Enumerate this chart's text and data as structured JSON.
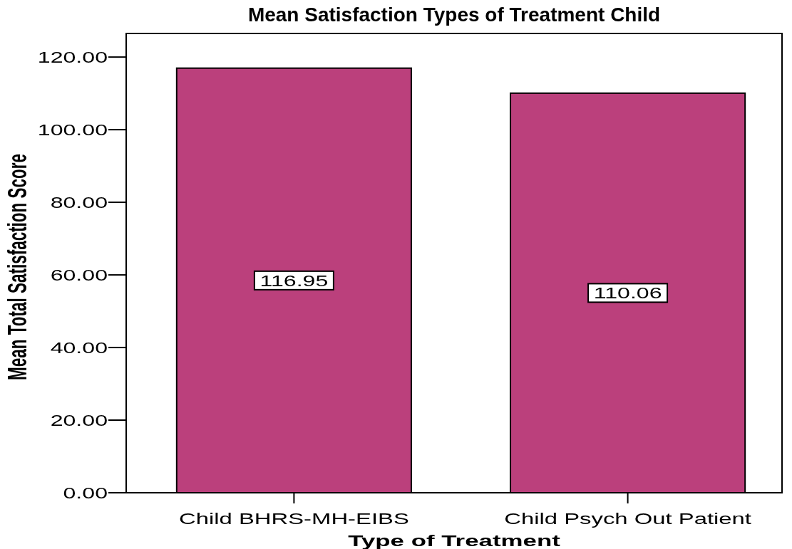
{
  "chart_data": {
    "type": "bar",
    "title": "Mean Satisfaction Types of Treatment Child",
    "xlabel": "Type of Treatment",
    "ylabel": "Mean Total Satisfaction Score",
    "categories": [
      "Child BHRS-MH-EIBS",
      "Child Psych Out Patient"
    ],
    "values": [
      116.95,
      110.06
    ],
    "color": "#bb407c",
    "ylim": [
      0,
      126.5
    ],
    "yticks": [
      {
        "value": 0,
        "label": "0.00"
      },
      {
        "value": 20,
        "label": "20.00"
      },
      {
        "value": 40,
        "label": "40.00"
      },
      {
        "value": 60,
        "label": "60.00"
      },
      {
        "value": 80,
        "label": "80.00"
      },
      {
        "value": 100,
        "label": "100.00"
      },
      {
        "value": 120,
        "label": "120.00"
      }
    ],
    "data_labels": true
  }
}
